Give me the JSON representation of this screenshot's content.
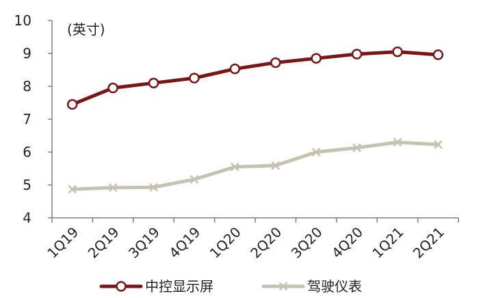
{
  "chart_data": {
    "type": "line",
    "unit_label": "(英寸)",
    "categories": [
      "1Q19",
      "2Q19",
      "3Q19",
      "4Q19",
      "1Q20",
      "2Q20",
      "3Q20",
      "4Q20",
      "1Q21",
      "2Q21"
    ],
    "ylim": [
      4,
      10
    ],
    "yticks": [
      "4",
      "5",
      "6",
      "7",
      "8",
      "9",
      "10"
    ],
    "grid": false,
    "legend_position": "bottom",
    "series": [
      {
        "name": "中控显示屏",
        "color": "#7b1414",
        "marker": "circle",
        "values": [
          7.45,
          7.95,
          8.1,
          8.25,
          8.53,
          8.72,
          8.85,
          8.98,
          9.05,
          8.96
        ]
      },
      {
        "name": "驾驶仪表",
        "color": "#c5c2b0",
        "marker": "x",
        "values": [
          4.87,
          4.92,
          4.93,
          5.17,
          5.55,
          5.59,
          6.0,
          6.13,
          6.3,
          6.23
        ]
      }
    ]
  }
}
